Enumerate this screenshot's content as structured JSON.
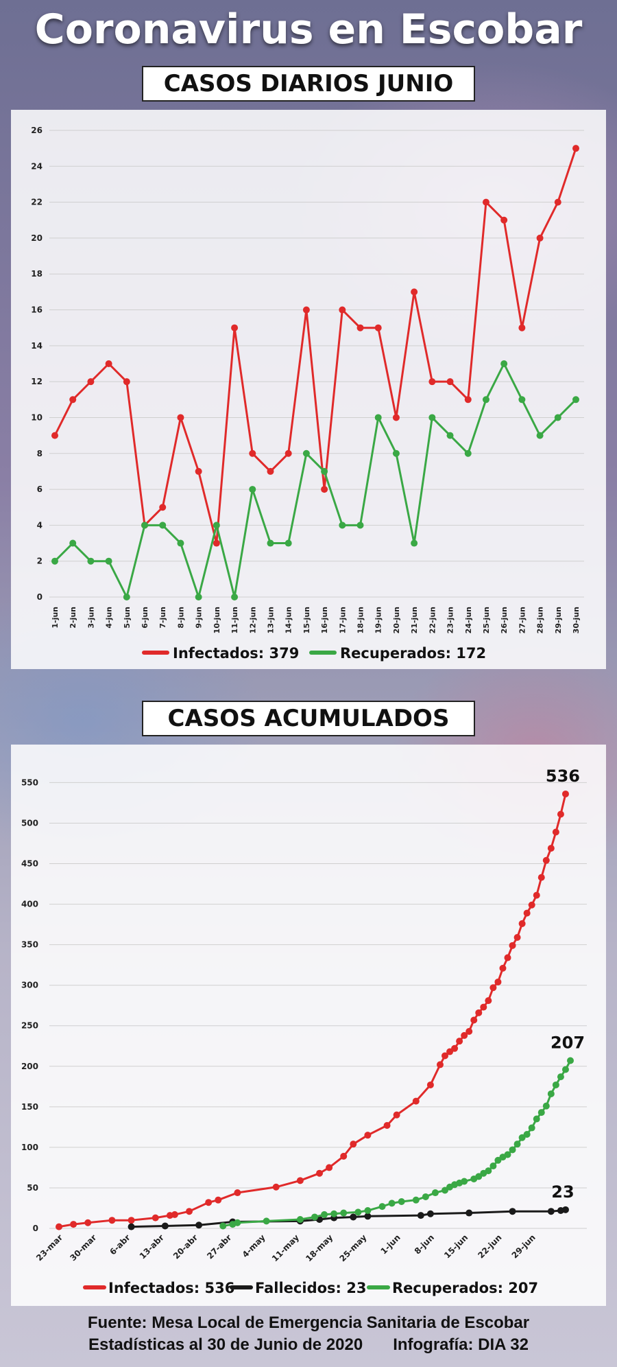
{
  "header": {
    "title": "Coronavirus en Escobar",
    "section1": "CASOS DIARIOS JUNIO",
    "section2": "CASOS ACUMULADOS"
  },
  "footer": {
    "line1": "Fuente: Mesa Local de Emergencia Sanitaria de Escobar",
    "line2": "Estadísticas al 30 de Junio de 2020",
    "infografia": "Infografía: DIA 32"
  },
  "chart_data": [
    {
      "type": "line",
      "categories": [
        "1-jun",
        "2-jun",
        "3-jun",
        "4-jun",
        "5-jun",
        "6-jun",
        "7-jun",
        "8-jun",
        "9-jun",
        "10-jun",
        "11-jun",
        "12-jun",
        "13-jun",
        "14-jun",
        "15-jun",
        "16-jun",
        "17-jun",
        "18-jun",
        "19-jun",
        "20-jun",
        "21-jun",
        "22-jun",
        "23-jun",
        "24-jun",
        "25-jun",
        "26-jun",
        "27-jun",
        "28-jun",
        "29-jun",
        "30-jun"
      ],
      "series": [
        {
          "name": "Infectados: 379",
          "color": "#e02a2a",
          "values": [
            9,
            11,
            12,
            13,
            12,
            4,
            5,
            10,
            7,
            3,
            15,
            8,
            7,
            8,
            16,
            6,
            16,
            15,
            15,
            10,
            17,
            12,
            12,
            11,
            22,
            21,
            15,
            20,
            22,
            25
          ]
        },
        {
          "name": "Recuperados: 172",
          "color": "#3aa845",
          "values": [
            2,
            3,
            2,
            2,
            0,
            4,
            4,
            3,
            0,
            4,
            0,
            6,
            3,
            3,
            8,
            7,
            4,
            4,
            10,
            8,
            3,
            10,
            9,
            8,
            11,
            13,
            11,
            9,
            10,
            11
          ]
        }
      ],
      "yticks": [
        "0",
        "2",
        "4",
        "6",
        "8",
        "10",
        "12",
        "14",
        "16",
        "18",
        "20",
        "22",
        "24",
        "26"
      ],
      "ylim": [
        0,
        26
      ],
      "grid": true,
      "legend": "bottom"
    },
    {
      "type": "line",
      "xticks": [
        {
          "label": "23-mar",
          "day": 0
        },
        {
          "label": "30-mar",
          "day": 7
        },
        {
          "label": "6-abr",
          "day": 14
        },
        {
          "label": "13-abr",
          "day": 21
        },
        {
          "label": "20-abr",
          "day": 28
        },
        {
          "label": "27-abr",
          "day": 35
        },
        {
          "label": "4-may",
          "day": 42
        },
        {
          "label": "11-may",
          "day": 49
        },
        {
          "label": "18-may",
          "day": 56
        },
        {
          "label": "25-may",
          "day": 63
        },
        {
          "label": "1-jun",
          "day": 70
        },
        {
          "label": "8-jun",
          "day": 77
        },
        {
          "label": "15-jun",
          "day": 84
        },
        {
          "label": "22-jun",
          "day": 91
        },
        {
          "label": "29-jun",
          "day": 98
        }
      ],
      "yticks": [
        "0",
        "50",
        "100",
        "150",
        "200",
        "250",
        "300",
        "350",
        "400",
        "450",
        "500",
        "550"
      ],
      "ylim": [
        0,
        580
      ],
      "grid": true,
      "legend": "bottom",
      "series": [
        {
          "name": "Infectados: 536",
          "color": "#e02a2a",
          "end_label": "536",
          "points": [
            [
              0,
              2
            ],
            [
              3,
              5
            ],
            [
              6,
              7
            ],
            [
              11,
              10
            ],
            [
              15,
              10
            ],
            [
              20,
              13
            ],
            [
              23,
              16
            ],
            [
              24,
              17
            ],
            [
              27,
              21
            ],
            [
              31,
              32
            ],
            [
              33,
              35
            ],
            [
              37,
              44
            ],
            [
              45,
              51
            ],
            [
              50,
              59
            ],
            [
              54,
              68
            ],
            [
              56,
              75
            ],
            [
              59,
              89
            ],
            [
              61,
              104
            ],
            [
              64,
              115
            ],
            [
              68,
              127
            ],
            [
              70,
              140
            ],
            [
              74,
              157
            ],
            [
              77,
              177
            ],
            [
              79,
              202
            ],
            [
              80,
              213
            ],
            [
              81,
              218
            ],
            [
              82,
              222
            ],
            [
              83,
              231
            ],
            [
              84,
              238
            ],
            [
              85,
              243
            ],
            [
              86,
              257
            ],
            [
              87,
              266
            ],
            [
              88,
              273
            ],
            [
              89,
              281
            ],
            [
              90,
              297
            ],
            [
              91,
              304
            ],
            [
              92,
              321
            ],
            [
              93,
              334
            ],
            [
              94,
              349
            ],
            [
              95,
              359
            ],
            [
              96,
              376
            ],
            [
              97,
              389
            ],
            [
              98,
              399
            ],
            [
              99,
              411
            ],
            [
              100,
              433
            ],
            [
              101,
              454
            ],
            [
              102,
              469
            ],
            [
              103,
              489
            ],
            [
              104,
              511
            ],
            [
              105,
              536
            ]
          ]
        },
        {
          "name": "Fallecidos: 23",
          "color": "#1a1a1a",
          "end_label": "23",
          "points": [
            [
              15,
              2
            ],
            [
              22,
              3
            ],
            [
              29,
              4
            ],
            [
              36,
              8
            ],
            [
              50,
              9
            ],
            [
              54,
              11
            ],
            [
              57,
              13
            ],
            [
              61,
              14
            ],
            [
              64,
              15
            ],
            [
              75,
              16
            ],
            [
              77,
              18
            ],
            [
              85,
              19
            ],
            [
              94,
              21
            ],
            [
              102,
              21
            ],
            [
              104,
              22
            ],
            [
              105,
              23
            ]
          ]
        },
        {
          "name": "Recuperados: 207",
          "color": "#3aa845",
          "end_label": "207",
          "points": [
            [
              34,
              3
            ],
            [
              36,
              5
            ],
            [
              37,
              7
            ],
            [
              43,
              9
            ],
            [
              50,
              11
            ],
            [
              53,
              14
            ],
            [
              55,
              17
            ],
            [
              57,
              18
            ],
            [
              59,
              19
            ],
            [
              62,
              20
            ],
            [
              64,
              22
            ],
            [
              67,
              27
            ],
            [
              69,
              31
            ],
            [
              71,
              33
            ],
            [
              74,
              35
            ],
            [
              76,
              39
            ],
            [
              78,
              44
            ],
            [
              80,
              47
            ],
            [
              81,
              51
            ],
            [
              82,
              54
            ],
            [
              83,
              56
            ],
            [
              84,
              58
            ],
            [
              86,
              61
            ],
            [
              87,
              64
            ],
            [
              88,
              68
            ],
            [
              89,
              71
            ],
            [
              90,
              77
            ],
            [
              91,
              84
            ],
            [
              92,
              88
            ],
            [
              93,
              91
            ],
            [
              94,
              97
            ],
            [
              95,
              104
            ],
            [
              96,
              112
            ],
            [
              97,
              116
            ],
            [
              98,
              124
            ],
            [
              99,
              135
            ],
            [
              100,
              143
            ],
            [
              101,
              151
            ],
            [
              102,
              166
            ],
            [
              103,
              177
            ],
            [
              104,
              187
            ],
            [
              105,
              196
            ],
            [
              106,
              207
            ]
          ]
        }
      ]
    }
  ]
}
